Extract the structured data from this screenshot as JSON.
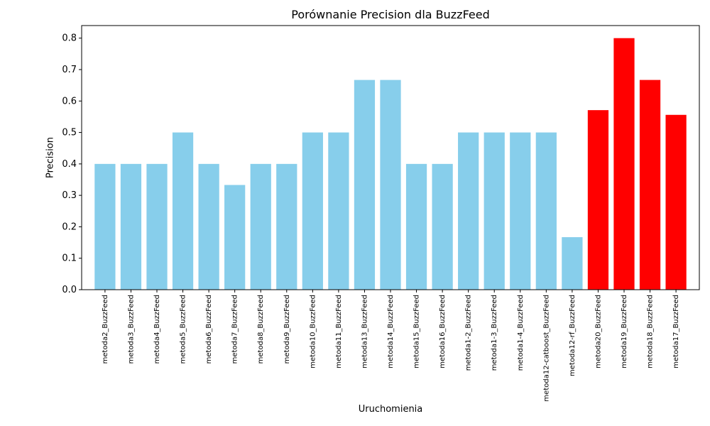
{
  "chart_data": {
    "type": "bar",
    "title": "Porównanie Precision dla BuzzFeed",
    "xlabel": "Uruchomienia",
    "ylabel": "Precision",
    "ylim": [
      0,
      0.84
    ],
    "yticks": [
      "0.0",
      "0.1",
      "0.2",
      "0.3",
      "0.4",
      "0.5",
      "0.6",
      "0.7",
      "0.8"
    ],
    "grid": false,
    "colors": {
      "default": "#87CEEB",
      "highlight": "#FF0000",
      "axis": "#000000"
    },
    "categories": [
      "metoda2_BuzzFeed",
      "metoda3_BuzzFeed",
      "metoda4_BuzzFeed",
      "metoda5_BuzzFeed",
      "metoda6_BuzzFeed",
      "metoda7_BuzzFeed",
      "metoda8_BuzzFeed",
      "metoda9_BuzzFeed",
      "metoda10_BuzzFeed",
      "metoda11_BuzzFeed",
      "metoda13_BuzzFeed",
      "metoda14_BuzzFeed",
      "metoda15_BuzzFeed",
      "metoda16_BuzzFeed",
      "metoda1-2_BuzzFeed",
      "metoda1-3_BuzzFeed",
      "metoda1-4_BuzzFeed",
      "metoda12-catboost_BuzzFeed",
      "metoda12-rf_BuzzFeed",
      "metoda20_BuzzFeed",
      "metoda19_BuzzFeed",
      "metoda18_BuzzFeed",
      "metoda17_BuzzFeed"
    ],
    "values": [
      0.4,
      0.4,
      0.4,
      0.5,
      0.4,
      0.333,
      0.4,
      0.4,
      0.5,
      0.5,
      0.667,
      0.667,
      0.4,
      0.4,
      0.5,
      0.5,
      0.5,
      0.5,
      0.167,
      0.571,
      0.8,
      0.667,
      0.556
    ],
    "highlighted": [
      false,
      false,
      false,
      false,
      false,
      false,
      false,
      false,
      false,
      false,
      false,
      false,
      false,
      false,
      false,
      false,
      false,
      false,
      false,
      true,
      true,
      true,
      true
    ]
  }
}
